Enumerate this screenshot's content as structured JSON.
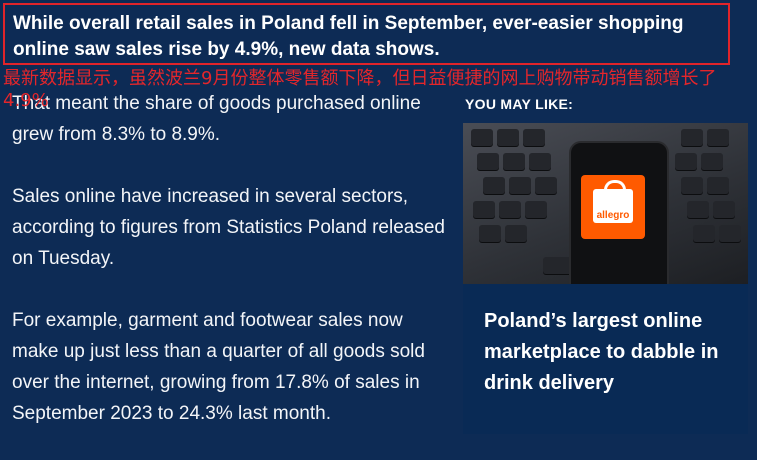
{
  "headline": "While overall retail sales in Poland fell in September, ever-easier shopping online saw sales rise by 4.9%, new data shows.",
  "translation": "最新数据显示，虽然波兰9月份整体零售额下降，但日益便捷的网上购物带动销售额增长了4.9%",
  "article": {
    "paragraphs": [
      "That meant the share of goods purchased online grew from 8.3% to 8.9%.",
      "Sales online have increased in several sectors, according to figures from Statistics Poland released on Tuesday.",
      "For example, garment and footwear sales now make up just less than a quarter of all goods sold over the internet, growing from 17.8% of sales in September 2023 to 24.3% last month."
    ]
  },
  "sidebar": {
    "heading": "YOU MAY LIKE:",
    "card": {
      "app_label": "allegro",
      "title": "Poland’s largest online marketplace to dabble in drink delivery"
    }
  },
  "colors": {
    "background": "#0d2b55",
    "highlight_border": "#e0242a",
    "translation": "#e3262b",
    "allegro_orange": "#ff5a00"
  }
}
